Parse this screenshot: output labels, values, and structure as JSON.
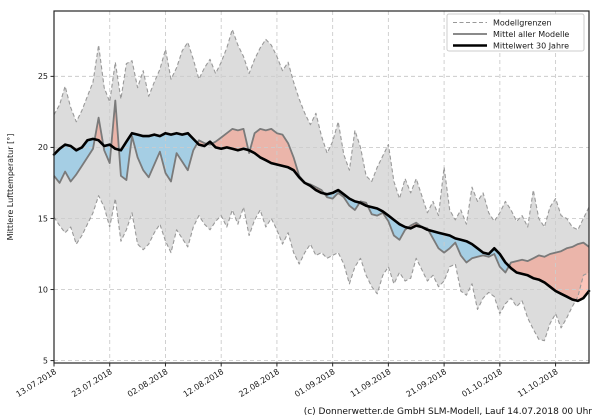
{
  "figure": {
    "caption": "(c) Donnerwetter.de GmbH SLM-Modell, Lauf 14.07.2018 00 Uhr"
  },
  "chart_data": {
    "type": "line",
    "title": "",
    "xlabel": "",
    "ylabel": "Mittlere Lufttemperatur [°]",
    "ylim": [
      4.83,
      29.6
    ],
    "yticks": [
      5,
      10,
      15,
      20,
      25
    ],
    "xtick_positions": [
      0,
      10,
      20,
      30,
      40,
      50,
      60,
      70,
      80,
      90
    ],
    "xtick_labels": [
      "13.07.2018",
      "23.07.2018",
      "02.08.2018",
      "12.08.2018",
      "22.08.2018",
      "01.09.2018",
      "11.09.2018",
      "21.09.2018",
      "01.10.2018",
      "11.10.2018"
    ],
    "xtick_rotation_deg": 32,
    "grid": {
      "show": true,
      "style": "dashed",
      "color": "#cccccc"
    },
    "legend": {
      "position": "upper right",
      "entries": [
        {
          "label": "Modellgrenzen",
          "style": "dashed",
          "color": "#999999",
          "width": 1.1
        },
        {
          "label": "Mittel aller Modelle",
          "style": "solid",
          "color": "#7a7a7a",
          "width": 1.8
        },
        {
          "label": "Mittelwert 30 Jahre",
          "style": "solid",
          "color": "#000000",
          "width": 2.6
        }
      ]
    },
    "fills": {
      "model_range": "#dcdcdc",
      "warm_anomaly": "rgba(248,150,130,0.55)",
      "cool_anomaly": "rgba(120,195,235,0.55)"
    },
    "series": [
      {
        "id": "bound_upper",
        "legend_label": "Modellgrenzen",
        "style": "dashed",
        "color": "#999999",
        "width": 1.1,
        "values": [
          22.3,
          23.0,
          24.3,
          22.8,
          21.8,
          22.6,
          23.6,
          24.6,
          27.2,
          24.2,
          23.2,
          26.0,
          23.4,
          25.9,
          26.1,
          24.2,
          25.4,
          23.6,
          24.6,
          25.5,
          26.9,
          24.8,
          25.6,
          26.8,
          27.4,
          26.2,
          24.8,
          25.6,
          26.2,
          25.2,
          26.0,
          27.0,
          28.3,
          27.2,
          26.4,
          25.2,
          26.2,
          27.0,
          27.6,
          27.2,
          26.4,
          25.4,
          26.0,
          24.6,
          23.4,
          22.4,
          21.6,
          22.4,
          20.8,
          19.6,
          20.4,
          21.8,
          19.5,
          18.4,
          21.2,
          20.0,
          18.0,
          17.6,
          18.6,
          19.4,
          20.2,
          17.6,
          16.4,
          17.8,
          16.8,
          17.8,
          16.6,
          15.4,
          16.2,
          15.2,
          18.6,
          15.6,
          14.9,
          15.6,
          14.6,
          17.2,
          16.2,
          16.8,
          15.4,
          14.8,
          15.4,
          16.2,
          15.6,
          14.8,
          15.2,
          14.4,
          17.0,
          15.0,
          14.4,
          15.8,
          16.4,
          15.2,
          15.0,
          14.4,
          14.2,
          15.0,
          15.8
        ]
      },
      {
        "id": "bound_lower",
        "legend_label": "Modellgrenzen",
        "style": "dashed",
        "color": "#999999",
        "width": 1.1,
        "values": [
          15.1,
          14.5,
          14.0,
          14.4,
          13.2,
          13.8,
          14.6,
          15.4,
          16.6,
          15.8,
          14.4,
          16.4,
          13.4,
          14.2,
          15.4,
          13.2,
          12.8,
          13.2,
          14.0,
          14.6,
          13.4,
          12.6,
          14.2,
          13.6,
          13.0,
          14.4,
          15.2,
          14.6,
          14.2,
          14.8,
          15.2,
          14.4,
          15.6,
          14.6,
          15.8,
          13.8,
          14.9,
          15.6,
          14.4,
          15.0,
          14.2,
          13.2,
          14.0,
          12.6,
          11.8,
          12.6,
          13.2,
          12.4,
          12.6,
          12.2,
          12.4,
          12.6,
          11.8,
          10.4,
          11.6,
          12.2,
          11.0,
          10.2,
          9.7,
          11.0,
          11.6,
          10.4,
          11.2,
          10.6,
          10.8,
          12.2,
          11.4,
          10.6,
          11.0,
          10.2,
          10.6,
          11.6,
          11.8,
          9.9,
          9.6,
          10.4,
          8.6,
          9.4,
          9.8,
          9.5,
          8.3,
          9.0,
          9.4,
          8.8,
          9.2,
          8.0,
          7.2,
          6.5,
          6.4,
          7.6,
          8.3,
          7.3,
          8.0,
          8.8,
          9.5,
          11.0,
          11.2
        ]
      },
      {
        "id": "model_mean",
        "legend_label": "Mittel aller Modelle",
        "style": "solid",
        "color": "#7a7a7a",
        "width": 1.8,
        "values": [
          18.0,
          17.5,
          18.3,
          17.6,
          18.1,
          18.7,
          19.3,
          19.9,
          22.1,
          19.8,
          18.9,
          23.3,
          18.0,
          17.7,
          20.8,
          19.3,
          18.4,
          17.9,
          18.8,
          19.7,
          18.2,
          17.6,
          19.6,
          19.0,
          18.4,
          19.8,
          20.5,
          20.3,
          20.2,
          20.4,
          20.7,
          21.0,
          21.3,
          21.2,
          21.3,
          19.6,
          21.0,
          21.3,
          21.2,
          21.3,
          21.0,
          20.9,
          20.3,
          19.3,
          18.0,
          17.5,
          17.4,
          17.2,
          17.0,
          16.5,
          16.4,
          16.8,
          16.5,
          15.9,
          15.6,
          16.2,
          16.1,
          15.3,
          15.2,
          15.4,
          14.8,
          13.8,
          13.5,
          14.2,
          14.5,
          14.7,
          14.4,
          14.3,
          13.6,
          12.9,
          12.6,
          12.9,
          13.3,
          12.4,
          11.9,
          12.2,
          12.3,
          12.4,
          12.3,
          12.5,
          11.6,
          11.2,
          11.9,
          12.0,
          12.1,
          12.0,
          12.2,
          12.4,
          12.3,
          12.5,
          12.6,
          12.7,
          12.9,
          13.0,
          13.2,
          13.3,
          13.0
        ]
      },
      {
        "id": "climate_mean",
        "legend_label": "Mittelwert 30 Jahre",
        "style": "solid",
        "color": "#000000",
        "width": 2.6,
        "values": [
          19.5,
          19.9,
          20.2,
          20.1,
          19.8,
          20.0,
          20.5,
          20.6,
          20.5,
          20.1,
          20.2,
          19.9,
          19.8,
          20.4,
          21.0,
          20.9,
          20.8,
          20.8,
          20.9,
          20.8,
          21.0,
          20.9,
          21.0,
          20.9,
          21.0,
          20.6,
          20.2,
          20.1,
          20.4,
          20.0,
          19.9,
          20.0,
          19.9,
          19.8,
          19.9,
          19.8,
          19.6,
          19.3,
          19.1,
          18.9,
          18.8,
          18.7,
          18.6,
          18.4,
          17.9,
          17.5,
          17.3,
          17.0,
          16.8,
          16.7,
          16.8,
          17.0,
          16.7,
          16.4,
          16.2,
          16.1,
          15.9,
          15.8,
          15.7,
          15.5,
          15.2,
          14.9,
          14.6,
          14.4,
          14.3,
          14.5,
          14.4,
          14.2,
          14.1,
          14.0,
          13.9,
          13.8,
          13.6,
          13.5,
          13.4,
          13.2,
          12.9,
          12.6,
          12.5,
          12.9,
          12.5,
          11.9,
          11.5,
          11.2,
          11.1,
          11.0,
          10.8,
          10.7,
          10.5,
          10.2,
          9.9,
          9.7,
          9.5,
          9.3,
          9.2,
          9.4,
          9.9
        ]
      }
    ]
  }
}
